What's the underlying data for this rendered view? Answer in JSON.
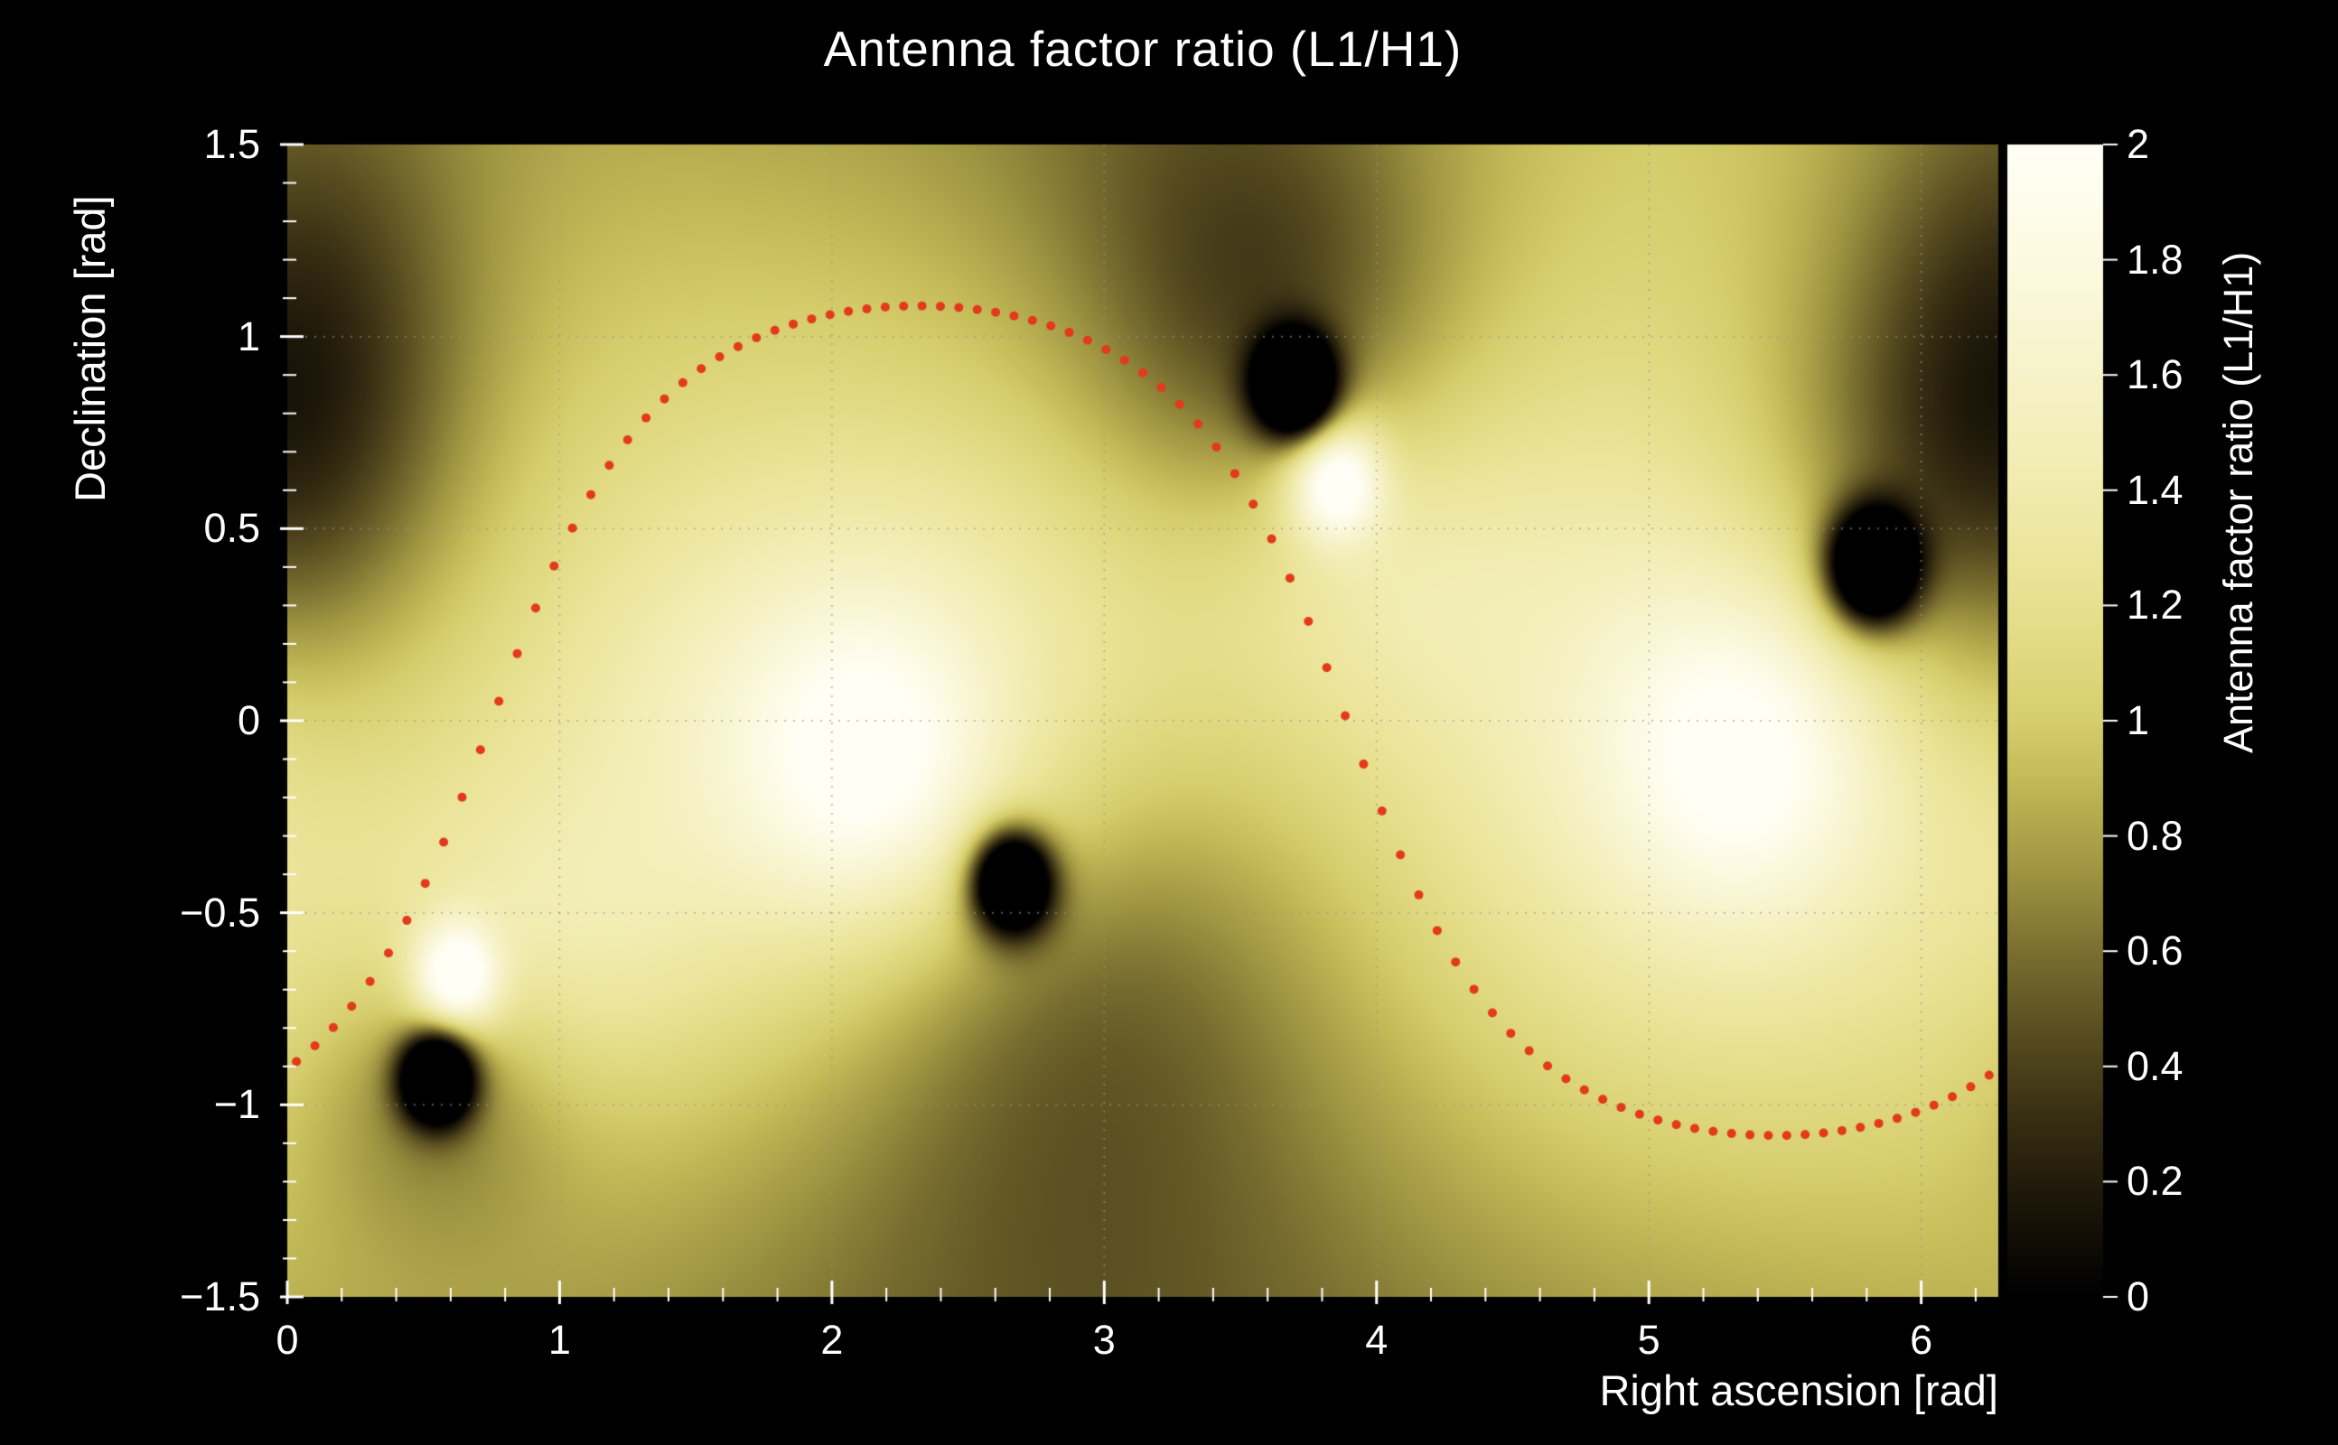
{
  "title": "Antenna factor ratio (L1/H1)",
  "colors": {
    "background": "#000000",
    "text": "#ffffff",
    "grid": "rgba(150,150,150,0.6)",
    "tick": "#ffffff",
    "curve_dot": "#e23a1b"
  },
  "chart_data": {
    "type": "heatmap",
    "title": "Antenna factor ratio (L1/H1)",
    "xlabel": "Right ascension [rad]",
    "ylabel": "Declination [rad]",
    "zlabel": "Antenna factor ratio (L1/H1)",
    "xlim": [
      0,
      6.2832
    ],
    "ylim": [
      -1.5,
      1.5
    ],
    "zlim": [
      0,
      2
    ],
    "x_ticks": {
      "values": [
        0,
        1,
        2,
        3,
        4,
        5,
        6
      ],
      "labels": [
        "0",
        "1",
        "2",
        "3",
        "4",
        "5",
        "6"
      ],
      "minor_step": 0.2
    },
    "y_ticks": {
      "values": [
        -1.5,
        -1,
        -0.5,
        0,
        0.5,
        1,
        1.5
      ],
      "labels": [
        "−1.5",
        "−1",
        "−0.5",
        "0",
        "0.5",
        "1",
        "1.5"
      ],
      "minor_step": 0.1
    },
    "z_ticks": {
      "values": [
        0,
        0.2,
        0.4,
        0.6,
        0.8,
        1,
        1.2,
        1.4,
        1.6,
        1.8,
        2
      ],
      "labels": [
        "0",
        "0.2",
        "0.4",
        "0.6",
        "0.8",
        "1",
        "1.2",
        "1.4",
        "1.6",
        "1.8",
        "2"
      ]
    },
    "grid": {
      "x_lines": [
        1,
        2,
        3,
        4,
        5,
        6
      ],
      "y_lines": [
        -1,
        -0.5,
        0,
        0.5,
        1
      ],
      "style": "dotted"
    },
    "field_model": {
      "background_level": 1.02,
      "bright_features": [
        {
          "name": "L1-lobe-1",
          "x": 2.12,
          "y": -0.08,
          "sx": 0.78,
          "sy": 0.52,
          "amplitude": 0.75
        },
        {
          "name": "L1-lobe-1-core",
          "x": 2.15,
          "y": -0.12,
          "sx": 0.3,
          "sy": 0.26,
          "amplitude": 0.55
        },
        {
          "name": "L1-lobe-2",
          "x": 5.3,
          "y": 0.0,
          "sx": 0.85,
          "sy": 0.6,
          "amplitude": 0.65
        },
        {
          "name": "L1-lobe-2-core",
          "x": 5.35,
          "y": -0.08,
          "sx": 0.32,
          "sy": 0.28,
          "amplitude": 0.55
        },
        {
          "name": "bright-spot-near-null-3",
          "x": 3.85,
          "y": 0.63,
          "sx": 0.12,
          "sy": 0.11,
          "amplitude": 1.1
        },
        {
          "name": "bright-spot-near-null-1",
          "x": 0.62,
          "y": -0.67,
          "sx": 0.11,
          "sy": 0.1,
          "amplitude": 1.1
        },
        {
          "name": "halo-near-null-1",
          "x": 0.85,
          "y": -0.6,
          "sx": 0.45,
          "sy": 0.28,
          "amplitude": 0.3
        },
        {
          "name": "halo-near-null-3",
          "x": 3.95,
          "y": 0.45,
          "sx": 0.4,
          "sy": 0.3,
          "amplitude": 0.3
        }
      ],
      "dark_features": [
        {
          "name": "null-1-core",
          "x": 0.55,
          "y": -0.93,
          "sx": 0.09,
          "sy": 0.08,
          "depth": 2.2
        },
        {
          "name": "null-1-halo",
          "x": 0.55,
          "y": -0.95,
          "sx": 0.32,
          "sy": 0.26,
          "depth": 0.4
        },
        {
          "name": "null-2-core",
          "x": 2.66,
          "y": -0.42,
          "sx": 0.1,
          "sy": 0.09,
          "depth": 2.2
        },
        {
          "name": "null-2-halo",
          "x": 2.85,
          "y": -0.55,
          "sx": 0.65,
          "sy": 0.45,
          "depth": 0.45
        },
        {
          "name": "lower-mid-shade",
          "x": 2.95,
          "y": -1.2,
          "sx": 0.9,
          "sy": 0.55,
          "depth": 0.3
        },
        {
          "name": "null-3-core",
          "x": 3.7,
          "y": 0.87,
          "sx": 0.1,
          "sy": 0.09,
          "depth": 2.2
        },
        {
          "name": "null-3-halo",
          "x": 3.6,
          "y": 0.98,
          "sx": 0.45,
          "sy": 0.38,
          "depth": 0.45
        },
        {
          "name": "top-mid-shade",
          "x": 3.4,
          "y": 1.5,
          "sx": 0.65,
          "sy": 0.5,
          "depth": 0.3
        },
        {
          "name": "null-4-core",
          "x": 5.82,
          "y": 0.4,
          "sx": 0.11,
          "sy": 0.1,
          "depth": 2.2
        },
        {
          "name": "null-4-halo",
          "x": 5.92,
          "y": 0.52,
          "sx": 0.5,
          "sy": 0.42,
          "depth": 0.45
        },
        {
          "name": "top-right-shade",
          "x": 6.35,
          "y": 1.05,
          "sx": 0.5,
          "sy": 0.65,
          "depth": 0.35
        },
        {
          "name": "top-left-shade",
          "x": 0.05,
          "y": 0.85,
          "sx": 0.4,
          "sy": 0.45,
          "depth": 0.4
        },
        {
          "name": "bottom-edge-shade",
          "x": 3.14,
          "y": -1.95,
          "sx": 3.2,
          "sy": 0.55,
          "depth": 0.35
        },
        {
          "name": "top-edge-shade",
          "x": 1.9,
          "y": 1.95,
          "sx": 1.6,
          "sy": 0.55,
          "depth": 0.25
        }
      ]
    },
    "overlay_curve": {
      "description": "red dotted great-circle track over the sky map",
      "model": "dec = atan( tan(inclination) * sin(ra - node_ra) )",
      "inclination_rad": 1.08,
      "node_ra_rad": 0.75,
      "n_points": 92,
      "dot_radius_px": 5
    },
    "colormap_stops": [
      [
        0.0,
        "#000000"
      ],
      [
        0.15,
        "#1a1408"
      ],
      [
        0.3,
        "#352c12"
      ],
      [
        0.45,
        "#564b1f"
      ],
      [
        0.6,
        "#7a6f30"
      ],
      [
        0.75,
        "#a29743"
      ],
      [
        0.9,
        "#c4ba58"
      ],
      [
        1.0,
        "#d6cd6d"
      ],
      [
        1.1,
        "#dfd87e"
      ],
      [
        1.25,
        "#eae397"
      ],
      [
        1.45,
        "#f2edb4"
      ],
      [
        1.65,
        "#f8f4cf"
      ],
      [
        1.85,
        "#fdfbe6"
      ],
      [
        2.0,
        "#fffff6"
      ]
    ]
  }
}
